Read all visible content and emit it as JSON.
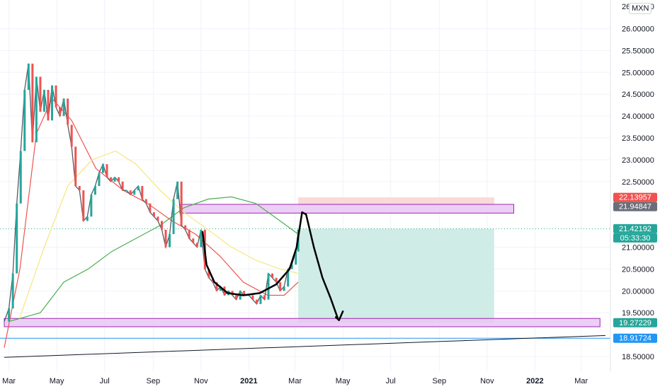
{
  "currency": "MXN",
  "top_partial_tick": "26.00000",
  "chart_data": {
    "type": "line",
    "title": "",
    "xlabel": "",
    "ylabel": "",
    "ylim": [
      18.5,
      26.0
    ],
    "y_ticks": [
      26.0,
      25.5,
      25.0,
      24.5,
      24.0,
      23.5,
      23.0,
      22.5,
      21.0,
      20.5,
      20.0,
      19.5,
      18.5
    ],
    "x_ticks": [
      {
        "label": "Mar",
        "date": "2020-03-01"
      },
      {
        "label": "May",
        "date": "2020-05-01"
      },
      {
        "label": "Jul",
        "date": "2020-07-01"
      },
      {
        "label": "Sep",
        "date": "2020-09-01"
      },
      {
        "label": "Nov",
        "date": "2020-11-01"
      },
      {
        "label": "2021",
        "date": "2021-01-01",
        "bold": true
      },
      {
        "label": "Mar",
        "date": "2021-03-01"
      },
      {
        "label": "May",
        "date": "2021-05-01"
      },
      {
        "label": "Jul",
        "date": "2021-07-01"
      },
      {
        "label": "Sep",
        "date": "2021-09-01"
      },
      {
        "label": "Nov",
        "date": "2021-11-01"
      },
      {
        "label": "2022",
        "date": "2022-01-01",
        "bold": true
      },
      {
        "label": "Mar",
        "date": "2022-03-01"
      }
    ],
    "price_series": [
      {
        "x": "2020-02-24",
        "y": 19.3
      },
      {
        "x": "2020-03-01",
        "y": 19.6
      },
      {
        "x": "2020-03-06",
        "y": 20.4
      },
      {
        "x": "2020-03-11",
        "y": 22.0
      },
      {
        "x": "2020-03-16",
        "y": 23.2
      },
      {
        "x": "2020-03-21",
        "y": 24.6
      },
      {
        "x": "2020-03-26",
        "y": 25.2
      },
      {
        "x": "2020-03-31",
        "y": 23.4
      },
      {
        "x": "2020-04-05",
        "y": 24.9
      },
      {
        "x": "2020-04-10",
        "y": 24.1
      },
      {
        "x": "2020-04-15",
        "y": 24.6
      },
      {
        "x": "2020-04-20",
        "y": 23.9
      },
      {
        "x": "2020-04-25",
        "y": 24.7
      },
      {
        "x": "2020-04-30",
        "y": 24.2
      },
      {
        "x": "2020-05-05",
        "y": 24.0
      },
      {
        "x": "2020-05-10",
        "y": 24.4
      },
      {
        "x": "2020-05-15",
        "y": 23.8
      },
      {
        "x": "2020-05-20",
        "y": 23.3
      },
      {
        "x": "2020-05-25",
        "y": 22.4
      },
      {
        "x": "2020-05-30",
        "y": 22.3
      },
      {
        "x": "2020-06-04",
        "y": 21.6
      },
      {
        "x": "2020-06-09",
        "y": 21.7
      },
      {
        "x": "2020-06-14",
        "y": 22.2
      },
      {
        "x": "2020-06-19",
        "y": 22.4
      },
      {
        "x": "2020-06-24",
        "y": 22.7
      },
      {
        "x": "2020-06-29",
        "y": 22.9
      },
      {
        "x": "2020-07-04",
        "y": 22.6
      },
      {
        "x": "2020-07-09",
        "y": 22.5
      },
      {
        "x": "2020-07-14",
        "y": 22.6
      },
      {
        "x": "2020-07-19",
        "y": 22.5
      },
      {
        "x": "2020-07-24",
        "y": 22.3
      },
      {
        "x": "2020-07-29",
        "y": 22.3
      },
      {
        "x": "2020-08-03",
        "y": 22.2
      },
      {
        "x": "2020-08-08",
        "y": 22.3
      },
      {
        "x": "2020-08-13",
        "y": 22.4
      },
      {
        "x": "2020-08-18",
        "y": 22.1
      },
      {
        "x": "2020-08-23",
        "y": 22.0
      },
      {
        "x": "2020-08-28",
        "y": 21.8
      },
      {
        "x": "2020-09-02",
        "y": 21.7
      },
      {
        "x": "2020-09-07",
        "y": 21.6
      },
      {
        "x": "2020-09-12",
        "y": 21.4
      },
      {
        "x": "2020-09-17",
        "y": 21.0
      },
      {
        "x": "2020-09-22",
        "y": 21.3
      },
      {
        "x": "2020-09-27",
        "y": 22.1
      },
      {
        "x": "2020-10-02",
        "y": 22.5
      },
      {
        "x": "2020-10-07",
        "y": 21.5
      },
      {
        "x": "2020-10-12",
        "y": 21.4
      },
      {
        "x": "2020-10-17",
        "y": 21.2
      },
      {
        "x": "2020-10-22",
        "y": 21.1
      },
      {
        "x": "2020-10-27",
        "y": 21.0
      },
      {
        "x": "2020-11-01",
        "y": 21.4
      },
      {
        "x": "2020-11-06",
        "y": 20.5
      },
      {
        "x": "2020-11-11",
        "y": 20.3
      },
      {
        "x": "2020-11-16",
        "y": 20.2
      },
      {
        "x": "2020-11-21",
        "y": 20.0
      },
      {
        "x": "2020-11-26",
        "y": 20.1
      },
      {
        "x": "2020-12-01",
        "y": 19.9
      },
      {
        "x": "2020-12-06",
        "y": 20.0
      },
      {
        "x": "2020-12-11",
        "y": 19.9
      },
      {
        "x": "2020-12-16",
        "y": 19.8
      },
      {
        "x": "2020-12-21",
        "y": 20.0
      },
      {
        "x": "2020-12-26",
        "y": 19.9
      },
      {
        "x": "2021-01-01",
        "y": 19.9
      },
      {
        "x": "2021-01-06",
        "y": 19.8
      },
      {
        "x": "2021-01-11",
        "y": 19.7
      },
      {
        "x": "2021-01-16",
        "y": 19.9
      },
      {
        "x": "2021-01-21",
        "y": 19.8
      },
      {
        "x": "2021-01-26",
        "y": 20.4
      },
      {
        "x": "2021-01-31",
        "y": 20.3
      },
      {
        "x": "2021-02-05",
        "y": 20.2
      },
      {
        "x": "2021-02-10",
        "y": 20.0
      },
      {
        "x": "2021-02-15",
        "y": 20.1
      },
      {
        "x": "2021-02-20",
        "y": 20.5
      },
      {
        "x": "2021-02-25",
        "y": 20.6
      },
      {
        "x": "2021-03-02",
        "y": 20.9
      },
      {
        "x": "2021-03-05",
        "y": 21.4
      }
    ],
    "moving_averages": [
      {
        "color": "#ef5350",
        "points": [
          {
            "x": "2020-02-24",
            "y": 18.7
          },
          {
            "x": "2020-03-15",
            "y": 20.5
          },
          {
            "x": "2020-04-05",
            "y": 23.6
          },
          {
            "x": "2020-04-25",
            "y": 24.4
          },
          {
            "x": "2020-05-20",
            "y": 23.9
          },
          {
            "x": "2020-06-20",
            "y": 22.8
          },
          {
            "x": "2020-07-25",
            "y": 22.3
          },
          {
            "x": "2020-08-25",
            "y": 22.0
          },
          {
            "x": "2020-09-25",
            "y": 21.6
          },
          {
            "x": "2020-10-25",
            "y": 21.3
          },
          {
            "x": "2020-11-25",
            "y": 20.8
          },
          {
            "x": "2020-12-25",
            "y": 20.2
          },
          {
            "x": "2021-01-25",
            "y": 19.9
          },
          {
            "x": "2021-02-15",
            "y": 19.9
          },
          {
            "x": "2021-03-05",
            "y": 20.2
          }
        ]
      },
      {
        "color": "#f7e67e",
        "points": [
          {
            "x": "2020-03-15",
            "y": 19.4
          },
          {
            "x": "2020-04-15",
            "y": 21.0
          },
          {
            "x": "2020-05-15",
            "y": 22.4
          },
          {
            "x": "2020-06-15",
            "y": 23.0
          },
          {
            "x": "2020-07-15",
            "y": 23.2
          },
          {
            "x": "2020-08-10",
            "y": 22.9
          },
          {
            "x": "2020-09-10",
            "y": 22.3
          },
          {
            "x": "2020-10-10",
            "y": 21.8
          },
          {
            "x": "2020-11-10",
            "y": 21.4
          },
          {
            "x": "2020-12-10",
            "y": 21.0
          },
          {
            "x": "2021-01-10",
            "y": 20.7
          },
          {
            "x": "2021-02-10",
            "y": 20.5
          },
          {
            "x": "2021-03-05",
            "y": 20.4
          }
        ]
      },
      {
        "color": "#4caf50",
        "points": [
          {
            "x": "2020-03-01",
            "y": 19.3
          },
          {
            "x": "2020-04-10",
            "y": 19.5
          },
          {
            "x": "2020-05-10",
            "y": 20.2
          },
          {
            "x": "2020-06-10",
            "y": 20.5
          },
          {
            "x": "2020-07-10",
            "y": 20.9
          },
          {
            "x": "2020-08-10",
            "y": 21.2
          },
          {
            "x": "2020-09-10",
            "y": 21.5
          },
          {
            "x": "2020-10-10",
            "y": 21.9
          },
          {
            "x": "2020-11-10",
            "y": 22.1
          },
          {
            "x": "2020-12-10",
            "y": 22.15
          },
          {
            "x": "2021-01-10",
            "y": 22.0
          },
          {
            "x": "2021-02-10",
            "y": 21.6
          },
          {
            "x": "2021-03-05",
            "y": 21.3
          }
        ]
      }
    ],
    "position_target_zone": {
      "x_start": "2021-03-05",
      "x_end": "2021-11-10",
      "y_from": 21.42192,
      "y_to": 19.27229,
      "color": "#d0ece6"
    },
    "position_stop_zone": {
      "x_start": "2021-03-05",
      "x_end": "2021-11-10",
      "y_from": 22.13957,
      "y_to": 21.94847,
      "color": "#fad9d9"
    },
    "zones": [
      {
        "x_start": "2020-10-05",
        "x_end": "2021-12-05",
        "y_from": 21.98,
        "y_to": 21.78,
        "color": "#e9c7f3",
        "border": "#9c27b0"
      },
      {
        "x_start": "2020-02-24",
        "x_end": "2022-03-25",
        "y_from": 19.37,
        "y_to": 19.18,
        "color": "#e9c7f3",
        "border": "#9c27b0"
      }
    ],
    "horizontal_lines": [
      {
        "y": 18.91724,
        "color": "#2196f3"
      },
      {
        "y": 21.42192,
        "color": "#26a69a",
        "style": "dotted"
      }
    ],
    "trendline": {
      "from": {
        "x": "2020-02-24",
        "y": 18.48
      },
      "to": {
        "x": "2022-04-01",
        "y": 18.98
      },
      "color": "#131722"
    },
    "drawn_curve_points": [
      {
        "x": "2020-11-03",
        "y": 21.35
      },
      {
        "x": "2020-11-08",
        "y": 20.6
      },
      {
        "x": "2020-11-18",
        "y": 20.2
      },
      {
        "x": "2020-12-05",
        "y": 19.95
      },
      {
        "x": "2020-12-25",
        "y": 19.9
      },
      {
        "x": "2021-01-15",
        "y": 19.95
      },
      {
        "x": "2021-02-05",
        "y": 20.15
      },
      {
        "x": "2021-02-22",
        "y": 20.5
      },
      {
        "x": "2021-03-03",
        "y": 21.0
      },
      {
        "x": "2021-03-10",
        "y": 21.8
      },
      {
        "x": "2021-03-15",
        "y": 21.75
      },
      {
        "x": "2021-03-25",
        "y": 21.0
      },
      {
        "x": "2021-04-05",
        "y": 20.3
      },
      {
        "x": "2021-04-15",
        "y": 19.85
      },
      {
        "x": "2021-04-25",
        "y": 19.35
      }
    ],
    "drawn_arrow_head": [
      {
        "x": "2021-04-22",
        "y": 19.4
      },
      {
        "x": "2021-04-26",
        "y": 19.33
      },
      {
        "x": "2021-05-01",
        "y": 19.53
      }
    ],
    "price_labels": [
      {
        "value": "22.13957",
        "y": 22.13957,
        "bg": "#ef5350",
        "fg": "#ffffff"
      },
      {
        "value": "21.94847",
        "y": 21.94847,
        "bg": "#6b6e7a",
        "fg": "#ffffff"
      },
      {
        "value": "21.42192",
        "y": 21.42192,
        "bg": "#26a69a",
        "fg": "#ffffff"
      },
      {
        "value": "05:33:30",
        "y": 21.31,
        "bg": "#26a69a",
        "fg": "#ffffff"
      },
      {
        "value": "19.27229",
        "y": 19.27229,
        "bg": "#26a69a",
        "fg": "#ffffff"
      },
      {
        "value": "18.91724",
        "y": 18.91724,
        "bg": "#2196f3",
        "fg": "#ffffff"
      }
    ]
  }
}
